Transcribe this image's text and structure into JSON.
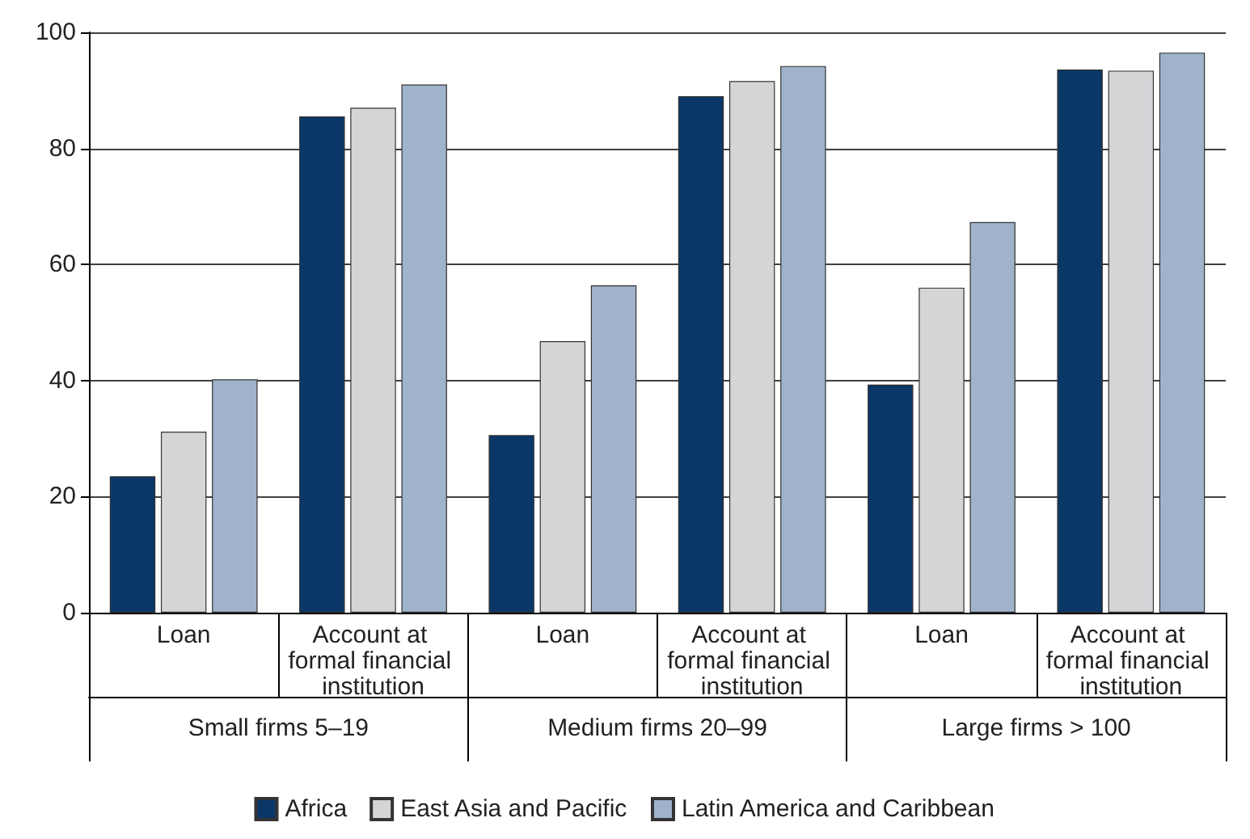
{
  "chart_data": {
    "type": "bar",
    "categories": [
      "Loan",
      "Account at formal financial institution",
      "Loan",
      "Account at formal financial institution",
      "Loan",
      "Account at formal financial institution"
    ],
    "annotations": [
      "Small firms 5–19",
      "Medium firms 20–99",
      "Large firms > 100"
    ],
    "series": [
      {
        "name": "Africa",
        "color": "#0b3768",
        "values": [
          23.5,
          85.5,
          30.6,
          89,
          39.3,
          93.6
        ]
      },
      {
        "name": "East Asia and Pacific",
        "color": "#d4d5d7",
        "values": [
          31.2,
          87,
          46.8,
          91.6,
          56,
          93.4
        ]
      },
      {
        "name": "Latin America and Caribbean",
        "color": "#9fb3cb",
        "values": [
          40.2,
          91,
          56.4,
          94.2,
          67.3,
          96.5
        ]
      }
    ],
    "ylim": [
      0,
      100
    ],
    "yticks": [
      0,
      20,
      40,
      60,
      80,
      100
    ],
    "grid": "y",
    "legend": "bottom"
  }
}
